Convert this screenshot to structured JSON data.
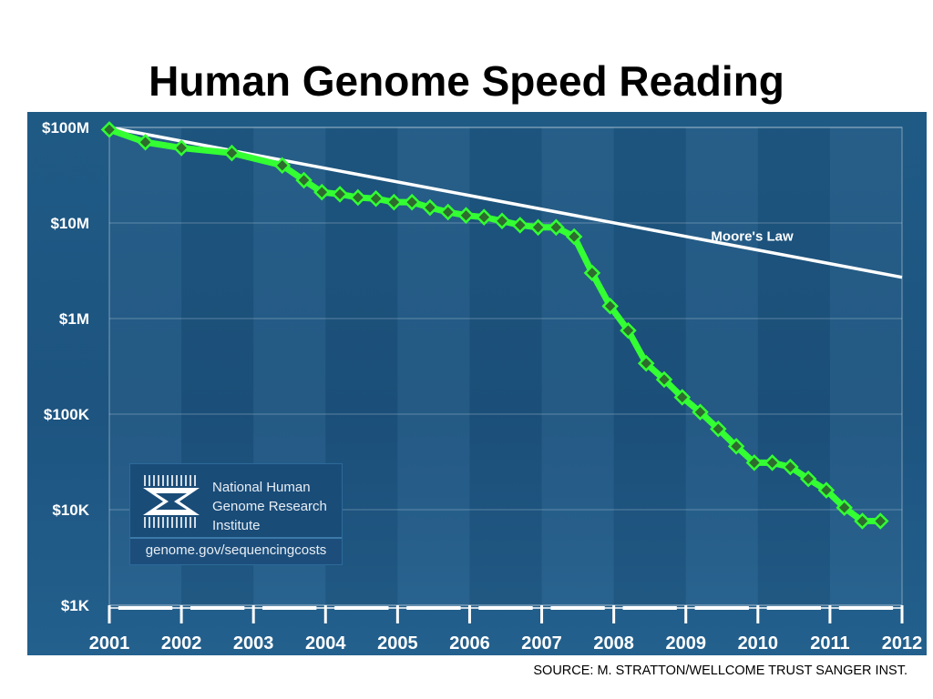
{
  "slide": {
    "title": "Human Genome Speed Reading",
    "source": "SOURCE: M. STRATTON/WELLCOME TRUST SANGER INST."
  },
  "logo": {
    "org_name": "National Human\nGenome Research\nInstitute",
    "url": "genome.gov/sequencingcosts",
    "icon": "nhgri-dna-logo"
  },
  "colors": {
    "background": "#1f5a85",
    "cost_line": "#33ff33",
    "marker_fill": "#2e6b2e",
    "moores_law": "#ffffff"
  },
  "chart_data": {
    "type": "line",
    "title": "",
    "xlabel": "",
    "ylabel": "",
    "y_scale": "log",
    "ylim": [
      1000,
      100000000
    ],
    "xlim": [
      2001.0,
      2012.0
    ],
    "y_ticks": [
      {
        "value": 100000000,
        "label": "$100M"
      },
      {
        "value": 10000000,
        "label": "$10M"
      },
      {
        "value": 1000000,
        "label": "$1M"
      },
      {
        "value": 100000,
        "label": "$100K"
      },
      {
        "value": 10000,
        "label": "$10K"
      },
      {
        "value": 1000,
        "label": "$1K"
      }
    ],
    "x_ticks": [
      {
        "value": 2001.0,
        "label": "2001"
      },
      {
        "value": 2002.0,
        "label": "2002"
      },
      {
        "value": 2003.0,
        "label": "2003"
      },
      {
        "value": 2004.0,
        "label": "2004"
      },
      {
        "value": 2005.0,
        "label": "2005"
      },
      {
        "value": 2006.0,
        "label": "2006"
      },
      {
        "value": 2007.0,
        "label": "2007"
      },
      {
        "value": 2008.0,
        "label": "2008"
      },
      {
        "value": 2009.0,
        "label": "2009"
      },
      {
        "value": 2010.0,
        "label": "2010"
      },
      {
        "value": 2011.0,
        "label": "2011"
      },
      {
        "value": 2012.0,
        "label": "2012"
      }
    ],
    "grid": true,
    "series": [
      {
        "name": "",
        "style": "line-with-diamond-markers",
        "points": [
          [
            2001.0,
            95000000
          ],
          [
            2001.5,
            70000000
          ],
          [
            2002.0,
            61000000
          ],
          [
            2002.7,
            54000000
          ],
          [
            2003.4,
            40000000
          ],
          [
            2003.7,
            28000000
          ],
          [
            2003.95,
            21000000
          ],
          [
            2004.2,
            20000000
          ],
          [
            2004.45,
            18500000
          ],
          [
            2004.7,
            18000000
          ],
          [
            2004.95,
            16500000
          ],
          [
            2005.2,
            16500000
          ],
          [
            2005.45,
            14500000
          ],
          [
            2005.7,
            13000000
          ],
          [
            2005.95,
            12000000
          ],
          [
            2006.2,
            11500000
          ],
          [
            2006.45,
            10500000
          ],
          [
            2006.7,
            9500000
          ],
          [
            2006.95,
            9000000
          ],
          [
            2007.2,
            9000000
          ],
          [
            2007.45,
            7200000
          ],
          [
            2007.7,
            3000000
          ],
          [
            2007.95,
            1350000
          ],
          [
            2008.2,
            750000
          ],
          [
            2008.45,
            340000
          ],
          [
            2008.7,
            230000
          ],
          [
            2008.95,
            150000
          ],
          [
            2009.2,
            105000
          ],
          [
            2009.45,
            70000
          ],
          [
            2009.7,
            46000
          ],
          [
            2009.95,
            31000
          ],
          [
            2010.2,
            31000
          ],
          [
            2010.45,
            28000
          ],
          [
            2010.7,
            21000
          ],
          [
            2010.95,
            16000
          ],
          [
            2011.2,
            10500
          ],
          [
            2011.45,
            7600
          ],
          [
            2011.7,
            7600
          ]
        ]
      },
      {
        "name": "Moore's Law",
        "style": "line",
        "points": [
          [
            2001.0,
            100000000
          ],
          [
            2012.0,
            2700000
          ]
        ]
      }
    ],
    "annotations": [
      {
        "text": "Moore's Law",
        "x": 2009.35,
        "y": 6500000
      }
    ]
  }
}
